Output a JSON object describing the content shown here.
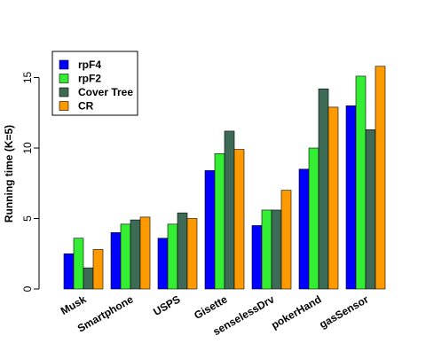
{
  "chart_data": {
    "type": "bar",
    "title": "",
    "xlabel": "",
    "ylabel": "Running time (K=5)",
    "ylim": [
      0,
      16
    ],
    "yticks": [
      0,
      5,
      10,
      15
    ],
    "grid": false,
    "legend_position": "top-left",
    "categories": [
      "Musk",
      "Smartphone",
      "USPS",
      "Gisette",
      "senselessDrv",
      "pokerHand",
      "gasSensor"
    ],
    "series": [
      {
        "name": "rpF4",
        "color": "#0000FF",
        "values": [
          2.5,
          4.0,
          3.6,
          8.4,
          4.5,
          8.5,
          13.0
        ]
      },
      {
        "name": "rpF2",
        "color": "#33EE33",
        "values": [
          3.6,
          4.6,
          4.6,
          9.6,
          5.6,
          10.0,
          15.1
        ]
      },
      {
        "name": "Cover Tree",
        "color": "#3D6B55",
        "values": [
          1.5,
          4.9,
          5.4,
          11.2,
          5.6,
          14.2,
          11.3
        ]
      },
      {
        "name": "CR",
        "color": "#FF9900",
        "values": [
          2.8,
          5.1,
          5.0,
          9.9,
          7.0,
          12.9,
          15.8
        ]
      }
    ]
  }
}
